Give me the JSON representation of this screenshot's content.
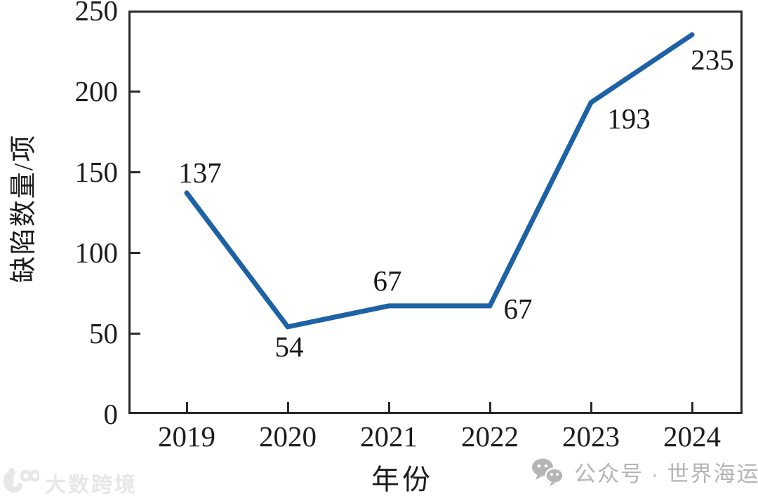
{
  "chart_data": {
    "type": "line",
    "categories": [
      "2019",
      "2020",
      "2021",
      "2022",
      "2023",
      "2024"
    ],
    "values": [
      137,
      54,
      67,
      67,
      193,
      235
    ],
    "data_labels": [
      "137",
      "54",
      "67",
      "67",
      "193",
      "235"
    ],
    "title": "",
    "xlabel": "年份",
    "ylabel": "缺陷数量/项",
    "yticks": [
      0,
      50,
      100,
      150,
      200,
      250
    ],
    "ylim": [
      0,
      250
    ],
    "grid": false,
    "legend": "none",
    "line_color": "#1d62a5",
    "axis_color": "#2a2a2a"
  },
  "watermarks": {
    "left_logo_text": "大数跨境",
    "right_text": "公众号 · 世界海运"
  }
}
